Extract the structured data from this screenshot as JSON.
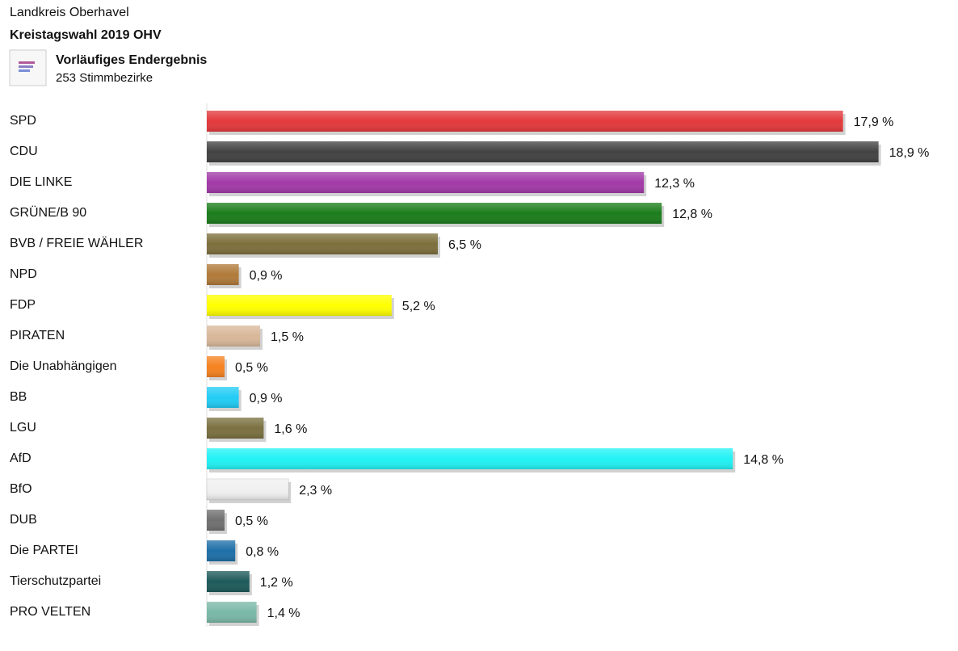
{
  "header": {
    "region": "Landkreis Oberhavel",
    "election": "Kreistagswahl 2019 OHV",
    "status": "Vorläufiges Endergebnis",
    "districts": "253 Stimmbezirke"
  },
  "chart_data": {
    "type": "bar",
    "orientation": "horizontal",
    "categories": [
      "SPD",
      "CDU",
      "DIE LINKE",
      "GRÜNE/B 90",
      "BVB / FREIE WÄHLER",
      "NPD",
      "FDP",
      "PIRATEN",
      "Die Unabhängigen",
      "BB",
      "LGU",
      "AfD",
      "BfO",
      "DUB",
      "Die PARTEI",
      "Tierschutzpartei",
      "PRO VELTEN"
    ],
    "values": [
      17.9,
      18.9,
      12.3,
      12.8,
      6.5,
      0.9,
      5.2,
      1.5,
      0.5,
      0.9,
      1.6,
      14.8,
      2.3,
      0.5,
      0.8,
      1.2,
      1.4
    ],
    "value_labels": [
      "17,9 %",
      "18,9 %",
      "12,3 %",
      "12,8 %",
      "6,5 %",
      "0,9 %",
      "5,2 %",
      "1,5 %",
      "0,5 %",
      "0,9 %",
      "1,6 %",
      "14,8 %",
      "2,3 %",
      "0,5 %",
      "0,8 %",
      "1,2 %",
      "1,4 %"
    ],
    "colors": [
      "#e3393b",
      "#424242",
      "#a23aa8",
      "#1b7d1b",
      "#7d6f3c",
      "#b07a3a",
      "#ffff00",
      "#d9b89a",
      "#f58220",
      "#22ccf5",
      "#7a7040",
      "#22f2f5",
      "#f0f0f0",
      "#707070",
      "#1e6fa8",
      "#1e5a5a",
      "#7ab8a8"
    ]
  }
}
